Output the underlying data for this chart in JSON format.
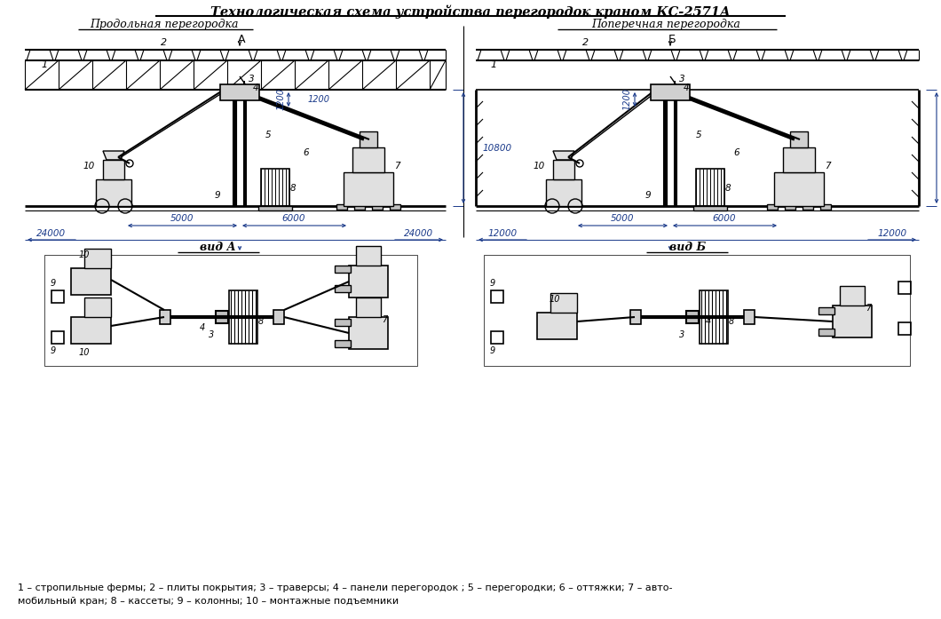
{
  "title": "Технологическая схема устройства перегородок краном КС-2571А",
  "left_label": "Продольная перегородка",
  "right_label": "Поперечная перегородка",
  "view_a_label": "вид А",
  "view_b_label": "вид Б",
  "cut_a": "А",
  "cut_b": "Б",
  "dim_left_24000": "24000",
  "dim_5000": "5000",
  "dim_6000": "6000",
  "dim_right_24000": "24000",
  "dim_left_12000": "12000",
  "dim_right_12000": "12000",
  "dim_10800": "10800",
  "dim_1200": "1200",
  "legend1": "1 – стропильные фермы; 2 – плиты покрытия; 3 – траверсы; 4 – панели перегородок ; 5 – перегородки; 6 – оттяжки; 7 – авто-",
  "legend2": "мобильный кран; 8 – кассеты; 9 – колонны; 10 – монтажные подъемники",
  "bg_color": "#ffffff",
  "lc": "#000000",
  "dc": "#1a3a8a"
}
